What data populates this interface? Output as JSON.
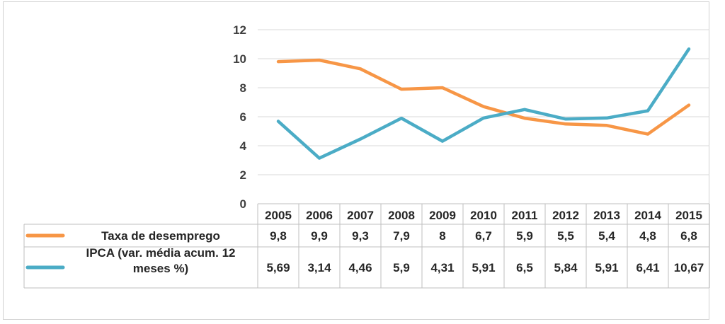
{
  "chart_data": {
    "type": "line",
    "categories": [
      "2005",
      "2006",
      "2007",
      "2008",
      "2009",
      "2010",
      "2011",
      "2012",
      "2013",
      "2014",
      "2015"
    ],
    "series": [
      {
        "name": "Taxa de desemprego",
        "values": [
          9.8,
          9.9,
          9.3,
          7.9,
          8,
          6.7,
          5.9,
          5.5,
          5.4,
          4.8,
          6.8
        ],
        "labels": [
          "9,8",
          "9,9",
          "9,3",
          "7,9",
          "8",
          "6,7",
          "5,9",
          "5,5",
          "5,4",
          "4,8",
          "6,8"
        ],
        "color": "#F79646"
      },
      {
        "name": "IPCA (var. média acum. 12 meses %)",
        "name_lines": [
          "IPCA (var. média acum. 12",
          "meses %)"
        ],
        "values": [
          5.69,
          3.14,
          4.46,
          5.9,
          4.31,
          5.91,
          6.5,
          5.84,
          5.91,
          6.41,
          10.67
        ],
        "labels": [
          "5,69",
          "3,14",
          "4,46",
          "5,9",
          "4,31",
          "5,91",
          "6,5",
          "5,84",
          "5,91",
          "6,41",
          "10,67"
        ],
        "color": "#4BACC6"
      }
    ],
    "yticks": [
      "0",
      "2",
      "4",
      "6",
      "8",
      "10",
      "12"
    ],
    "ylim": [
      0,
      12
    ],
    "grid": true,
    "legend": "data-table"
  }
}
